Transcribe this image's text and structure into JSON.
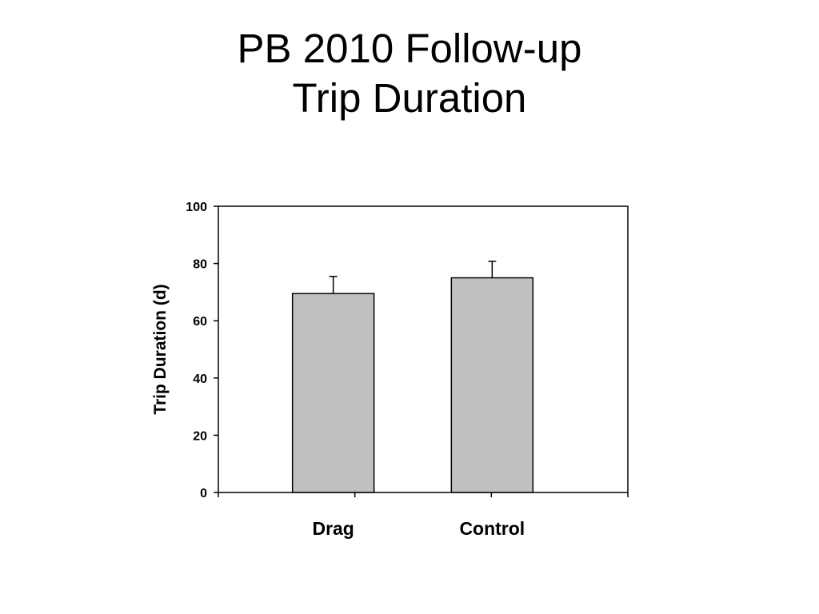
{
  "slide": {
    "title_line1": "PB 2010 Follow-up",
    "title_line2": "Trip Duration"
  },
  "chart_data": {
    "type": "bar",
    "title": "",
    "xlabel": "",
    "ylabel": "Trip Duration (d)",
    "categories": [
      "Drag",
      "Control"
    ],
    "values": [
      69.5,
      75.0
    ],
    "error_bars": [
      6.0,
      5.8
    ],
    "ylim": [
      0,
      100
    ],
    "yticks": [
      0,
      20,
      40,
      60,
      80,
      100
    ],
    "ytick_labels": [
      "0",
      "20",
      "40",
      "60",
      "80",
      "100"
    ],
    "grid": false,
    "legend": "none",
    "bar_color": "#c0c0c0",
    "axis_color": "#000000"
  }
}
